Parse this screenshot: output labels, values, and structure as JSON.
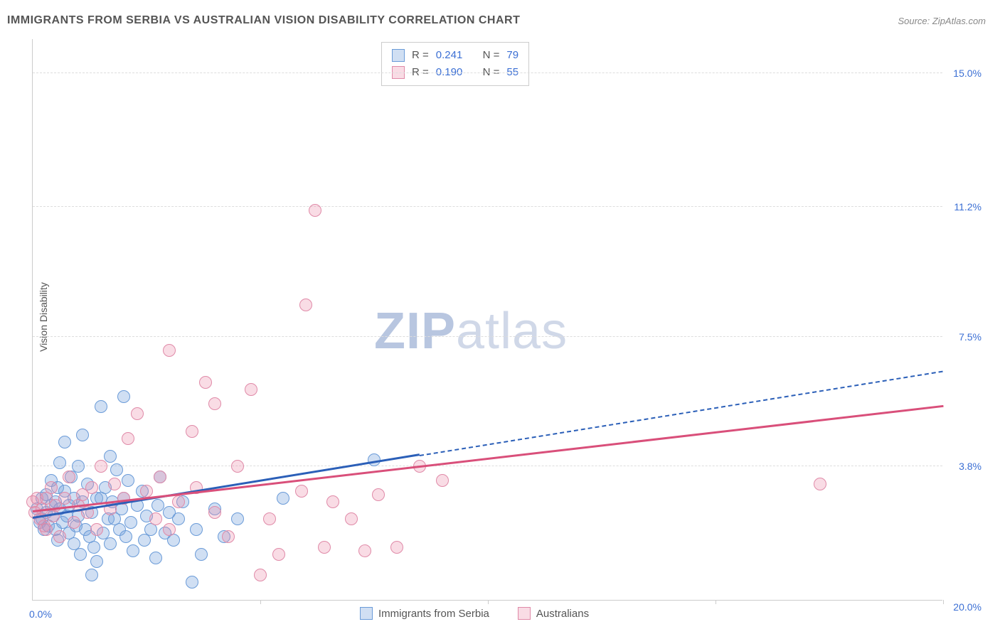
{
  "title": "IMMIGRANTS FROM SERBIA VS AUSTRALIAN VISION DISABILITY CORRELATION CHART",
  "source": "Source: ZipAtlas.com",
  "ylabel": "Vision Disability",
  "watermark": {
    "bold": "ZIP",
    "rest": "atlas"
  },
  "chart": {
    "type": "scatter",
    "background_color": "#ffffff",
    "grid_color": "#dddddd",
    "axis_color": "#cccccc",
    "xlim": [
      0,
      20
    ],
    "ylim": [
      0,
      16
    ],
    "y_gridlines": [
      3.8,
      7.5,
      11.2,
      15.0
    ],
    "y_tick_labels": [
      "3.8%",
      "7.5%",
      "11.2%",
      "15.0%"
    ],
    "x_ticks": [
      5,
      10,
      15,
      20
    ],
    "x_corner_labels": [
      "0.0%",
      "20.0%"
    ],
    "point_radius": 9,
    "point_stroke_width": 1.5,
    "series": [
      {
        "name": "Immigrants from Serbia",
        "fill": "rgba(120,164,220,0.35)",
        "stroke": "#6a9bd8",
        "R": "0.241",
        "N": "79",
        "trend": {
          "color": "#2b5fb8",
          "width": 3,
          "solid_from": [
            0,
            2.3
          ],
          "solid_to": [
            8.5,
            4.1
          ],
          "dash_to": [
            20,
            6.5
          ],
          "dash": "8,6"
        },
        "points": [
          [
            0.1,
            2.6
          ],
          [
            0.15,
            2.2
          ],
          [
            0.2,
            2.9
          ],
          [
            0.2,
            2.3
          ],
          [
            0.25,
            2.0
          ],
          [
            0.3,
            3.0
          ],
          [
            0.3,
            2.5
          ],
          [
            0.35,
            2.1
          ],
          [
            0.4,
            2.7
          ],
          [
            0.4,
            3.4
          ],
          [
            0.45,
            2.4
          ],
          [
            0.5,
            2.0
          ],
          [
            0.5,
            2.8
          ],
          [
            0.55,
            3.2
          ],
          [
            0.55,
            1.7
          ],
          [
            0.6,
            3.9
          ],
          [
            0.6,
            2.6
          ],
          [
            0.65,
            2.2
          ],
          [
            0.7,
            4.5
          ],
          [
            0.7,
            3.1
          ],
          [
            0.75,
            2.4
          ],
          [
            0.8,
            1.9
          ],
          [
            0.8,
            2.7
          ],
          [
            0.85,
            3.5
          ],
          [
            0.9,
            2.9
          ],
          [
            0.9,
            1.6
          ],
          [
            0.95,
            2.1
          ],
          [
            1.0,
            3.8
          ],
          [
            1.0,
            2.4
          ],
          [
            1.05,
            1.3
          ],
          [
            1.1,
            4.7
          ],
          [
            1.1,
            2.8
          ],
          [
            1.15,
            2.0
          ],
          [
            1.2,
            3.3
          ],
          [
            1.25,
            1.8
          ],
          [
            1.3,
            2.5
          ],
          [
            1.3,
            0.7
          ],
          [
            1.35,
            1.5
          ],
          [
            1.4,
            1.1
          ],
          [
            1.4,
            2.9
          ],
          [
            1.5,
            5.5
          ],
          [
            1.5,
            2.9
          ],
          [
            1.55,
            1.9
          ],
          [
            1.6,
            3.2
          ],
          [
            1.65,
            2.3
          ],
          [
            1.7,
            4.1
          ],
          [
            1.7,
            1.6
          ],
          [
            1.75,
            2.8
          ],
          [
            1.8,
            2.3
          ],
          [
            1.85,
            3.7
          ],
          [
            1.9,
            2.0
          ],
          [
            1.95,
            2.6
          ],
          [
            2.0,
            5.8
          ],
          [
            2.0,
            2.9
          ],
          [
            2.05,
            1.8
          ],
          [
            2.1,
            3.4
          ],
          [
            2.15,
            2.2
          ],
          [
            2.2,
            1.4
          ],
          [
            2.3,
            2.7
          ],
          [
            2.4,
            3.1
          ],
          [
            2.45,
            1.7
          ],
          [
            2.5,
            2.4
          ],
          [
            2.6,
            2.0
          ],
          [
            2.7,
            1.2
          ],
          [
            2.75,
            2.7
          ],
          [
            2.8,
            3.5
          ],
          [
            2.9,
            1.9
          ],
          [
            3.0,
            2.5
          ],
          [
            3.1,
            1.7
          ],
          [
            3.2,
            2.3
          ],
          [
            3.3,
            2.8
          ],
          [
            3.5,
            0.5
          ],
          [
            3.6,
            2.0
          ],
          [
            3.7,
            1.3
          ],
          [
            4.0,
            2.6
          ],
          [
            4.2,
            1.8
          ],
          [
            4.5,
            2.3
          ],
          [
            5.5,
            2.9
          ],
          [
            7.5,
            4.0
          ]
        ]
      },
      {
        "name": "Australians",
        "fill": "rgba(235,140,170,0.30)",
        "stroke": "#e08aa8",
        "R": "0.190",
        "N": "55",
        "trend": {
          "color": "#d94f7a",
          "width": 3,
          "solid_from": [
            0,
            2.5
          ],
          "solid_to": [
            20,
            5.5
          ],
          "dash_to": null,
          "dash": null
        },
        "points": [
          [
            0.0,
            2.8
          ],
          [
            0.05,
            2.5
          ],
          [
            0.1,
            2.9
          ],
          [
            0.15,
            2.3
          ],
          [
            0.2,
            2.6
          ],
          [
            0.25,
            2.1
          ],
          [
            0.3,
            2.9
          ],
          [
            0.3,
            2.0
          ],
          [
            0.4,
            3.2
          ],
          [
            0.45,
            2.4
          ],
          [
            0.5,
            2.7
          ],
          [
            0.6,
            1.8
          ],
          [
            0.7,
            2.9
          ],
          [
            0.8,
            3.5
          ],
          [
            0.9,
            2.2
          ],
          [
            1.0,
            2.7
          ],
          [
            1.1,
            3.0
          ],
          [
            1.2,
            2.5
          ],
          [
            1.3,
            3.2
          ],
          [
            1.4,
            2.0
          ],
          [
            1.5,
            3.8
          ],
          [
            1.7,
            2.6
          ],
          [
            1.8,
            3.3
          ],
          [
            2.0,
            2.9
          ],
          [
            2.1,
            4.6
          ],
          [
            2.3,
            5.3
          ],
          [
            2.5,
            3.1
          ],
          [
            2.7,
            2.3
          ],
          [
            2.8,
            3.5
          ],
          [
            3.0,
            7.1
          ],
          [
            3.0,
            2.0
          ],
          [
            3.2,
            2.8
          ],
          [
            3.5,
            4.8
          ],
          [
            3.6,
            3.2
          ],
          [
            3.8,
            6.2
          ],
          [
            4.0,
            2.5
          ],
          [
            4.0,
            5.6
          ],
          [
            4.3,
            1.8
          ],
          [
            4.5,
            3.8
          ],
          [
            4.8,
            6.0
          ],
          [
            5.0,
            0.7
          ],
          [
            5.2,
            2.3
          ],
          [
            5.4,
            1.3
          ],
          [
            5.9,
            3.1
          ],
          [
            6.0,
            8.4
          ],
          [
            6.2,
            11.1
          ],
          [
            6.4,
            1.5
          ],
          [
            6.6,
            2.8
          ],
          [
            7.0,
            2.3
          ],
          [
            7.3,
            1.4
          ],
          [
            7.6,
            3.0
          ],
          [
            8.0,
            1.5
          ],
          [
            8.5,
            3.8
          ],
          [
            9.0,
            3.4
          ],
          [
            17.3,
            3.3
          ]
        ]
      }
    ],
    "legend_labels": {
      "R": "R =",
      "N": "N ="
    }
  }
}
